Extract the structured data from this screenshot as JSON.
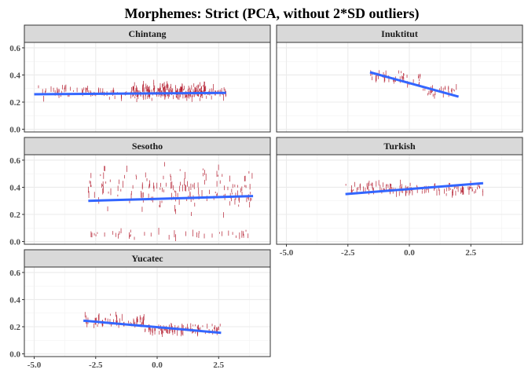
{
  "chart_data": {
    "type": "scatter",
    "title": "Morphemes: Strict (PCA, without 2*SD outliers)",
    "xlabel": "",
    "ylabel": "",
    "xlim": [
      -5.4,
      4.6
    ],
    "ylim": [
      -0.02,
      0.64
    ],
    "x_ticks": [
      -5.0,
      -2.5,
      0.0,
      2.5
    ],
    "x_tick_labels": [
      "-5.0",
      "-2.5",
      "0.0",
      "2.5"
    ],
    "y_ticks": [
      0.0,
      0.2,
      0.4,
      0.6
    ],
    "y_tick_labels": [
      "0.0",
      "0.2",
      "0.4",
      "0.6"
    ],
    "grid": true,
    "point_color": "#b2182b",
    "line_color": "#3366ff",
    "strip_fill": "#d9d9d9",
    "panels": [
      {
        "name": "Chintang",
        "trend": {
          "x": [
            -5.0,
            2.8
          ],
          "y": [
            0.258,
            0.268
          ]
        },
        "clusters": [
          {
            "x_range": [
              -5.0,
              -1.0
            ],
            "y_center": 0.27,
            "y_spread": 0.06,
            "count": 60
          },
          {
            "x_range": [
              -1.0,
              2.0
            ],
            "y_center": 0.28,
            "y_spread": 0.08,
            "count": 220
          },
          {
            "x_range": [
              2.0,
              2.8
            ],
            "y_center": 0.27,
            "y_spread": 0.05,
            "count": 25
          }
        ]
      },
      {
        "name": "Inuktitut",
        "trend": {
          "x": [
            -1.6,
            2.0
          ],
          "y": [
            0.42,
            0.24
          ]
        },
        "clusters": [
          {
            "x_range": [
              -1.6,
              0.5
            ],
            "y_center": 0.38,
            "y_spread": 0.07,
            "count": 40
          },
          {
            "x_range": [
              0.5,
              2.0
            ],
            "y_center": 0.28,
            "y_spread": 0.06,
            "count": 25
          }
        ]
      },
      {
        "name": "Sesotho",
        "trend": {
          "x": [
            -2.8,
            3.9
          ],
          "y": [
            0.3,
            0.335
          ]
        },
        "clusters": [
          {
            "x_range": [
              -2.8,
              3.9
            ],
            "y_center": 0.38,
            "y_spread": 0.22,
            "count": 160
          },
          {
            "x_range": [
              -2.8,
              3.9
            ],
            "y_center": 0.05,
            "y_spread": 0.04,
            "count": 40
          }
        ]
      },
      {
        "name": "Turkish",
        "trend": {
          "x": [
            -2.6,
            3.0
          ],
          "y": [
            0.35,
            0.43
          ]
        },
        "clusters": [
          {
            "x_range": [
              -2.6,
              3.0
            ],
            "y_center": 0.39,
            "y_spread": 0.06,
            "count": 120
          }
        ]
      },
      {
        "name": "Yucatec",
        "trend": {
          "x": [
            -3.0,
            2.6
          ],
          "y": [
            0.245,
            0.155
          ]
        },
        "clusters": [
          {
            "x_range": [
              -3.0,
              -0.5
            ],
            "y_center": 0.24,
            "y_spread": 0.06,
            "count": 60
          },
          {
            "x_range": [
              -0.5,
              2.6
            ],
            "y_center": 0.18,
            "y_spread": 0.04,
            "count": 90
          }
        ]
      }
    ]
  }
}
